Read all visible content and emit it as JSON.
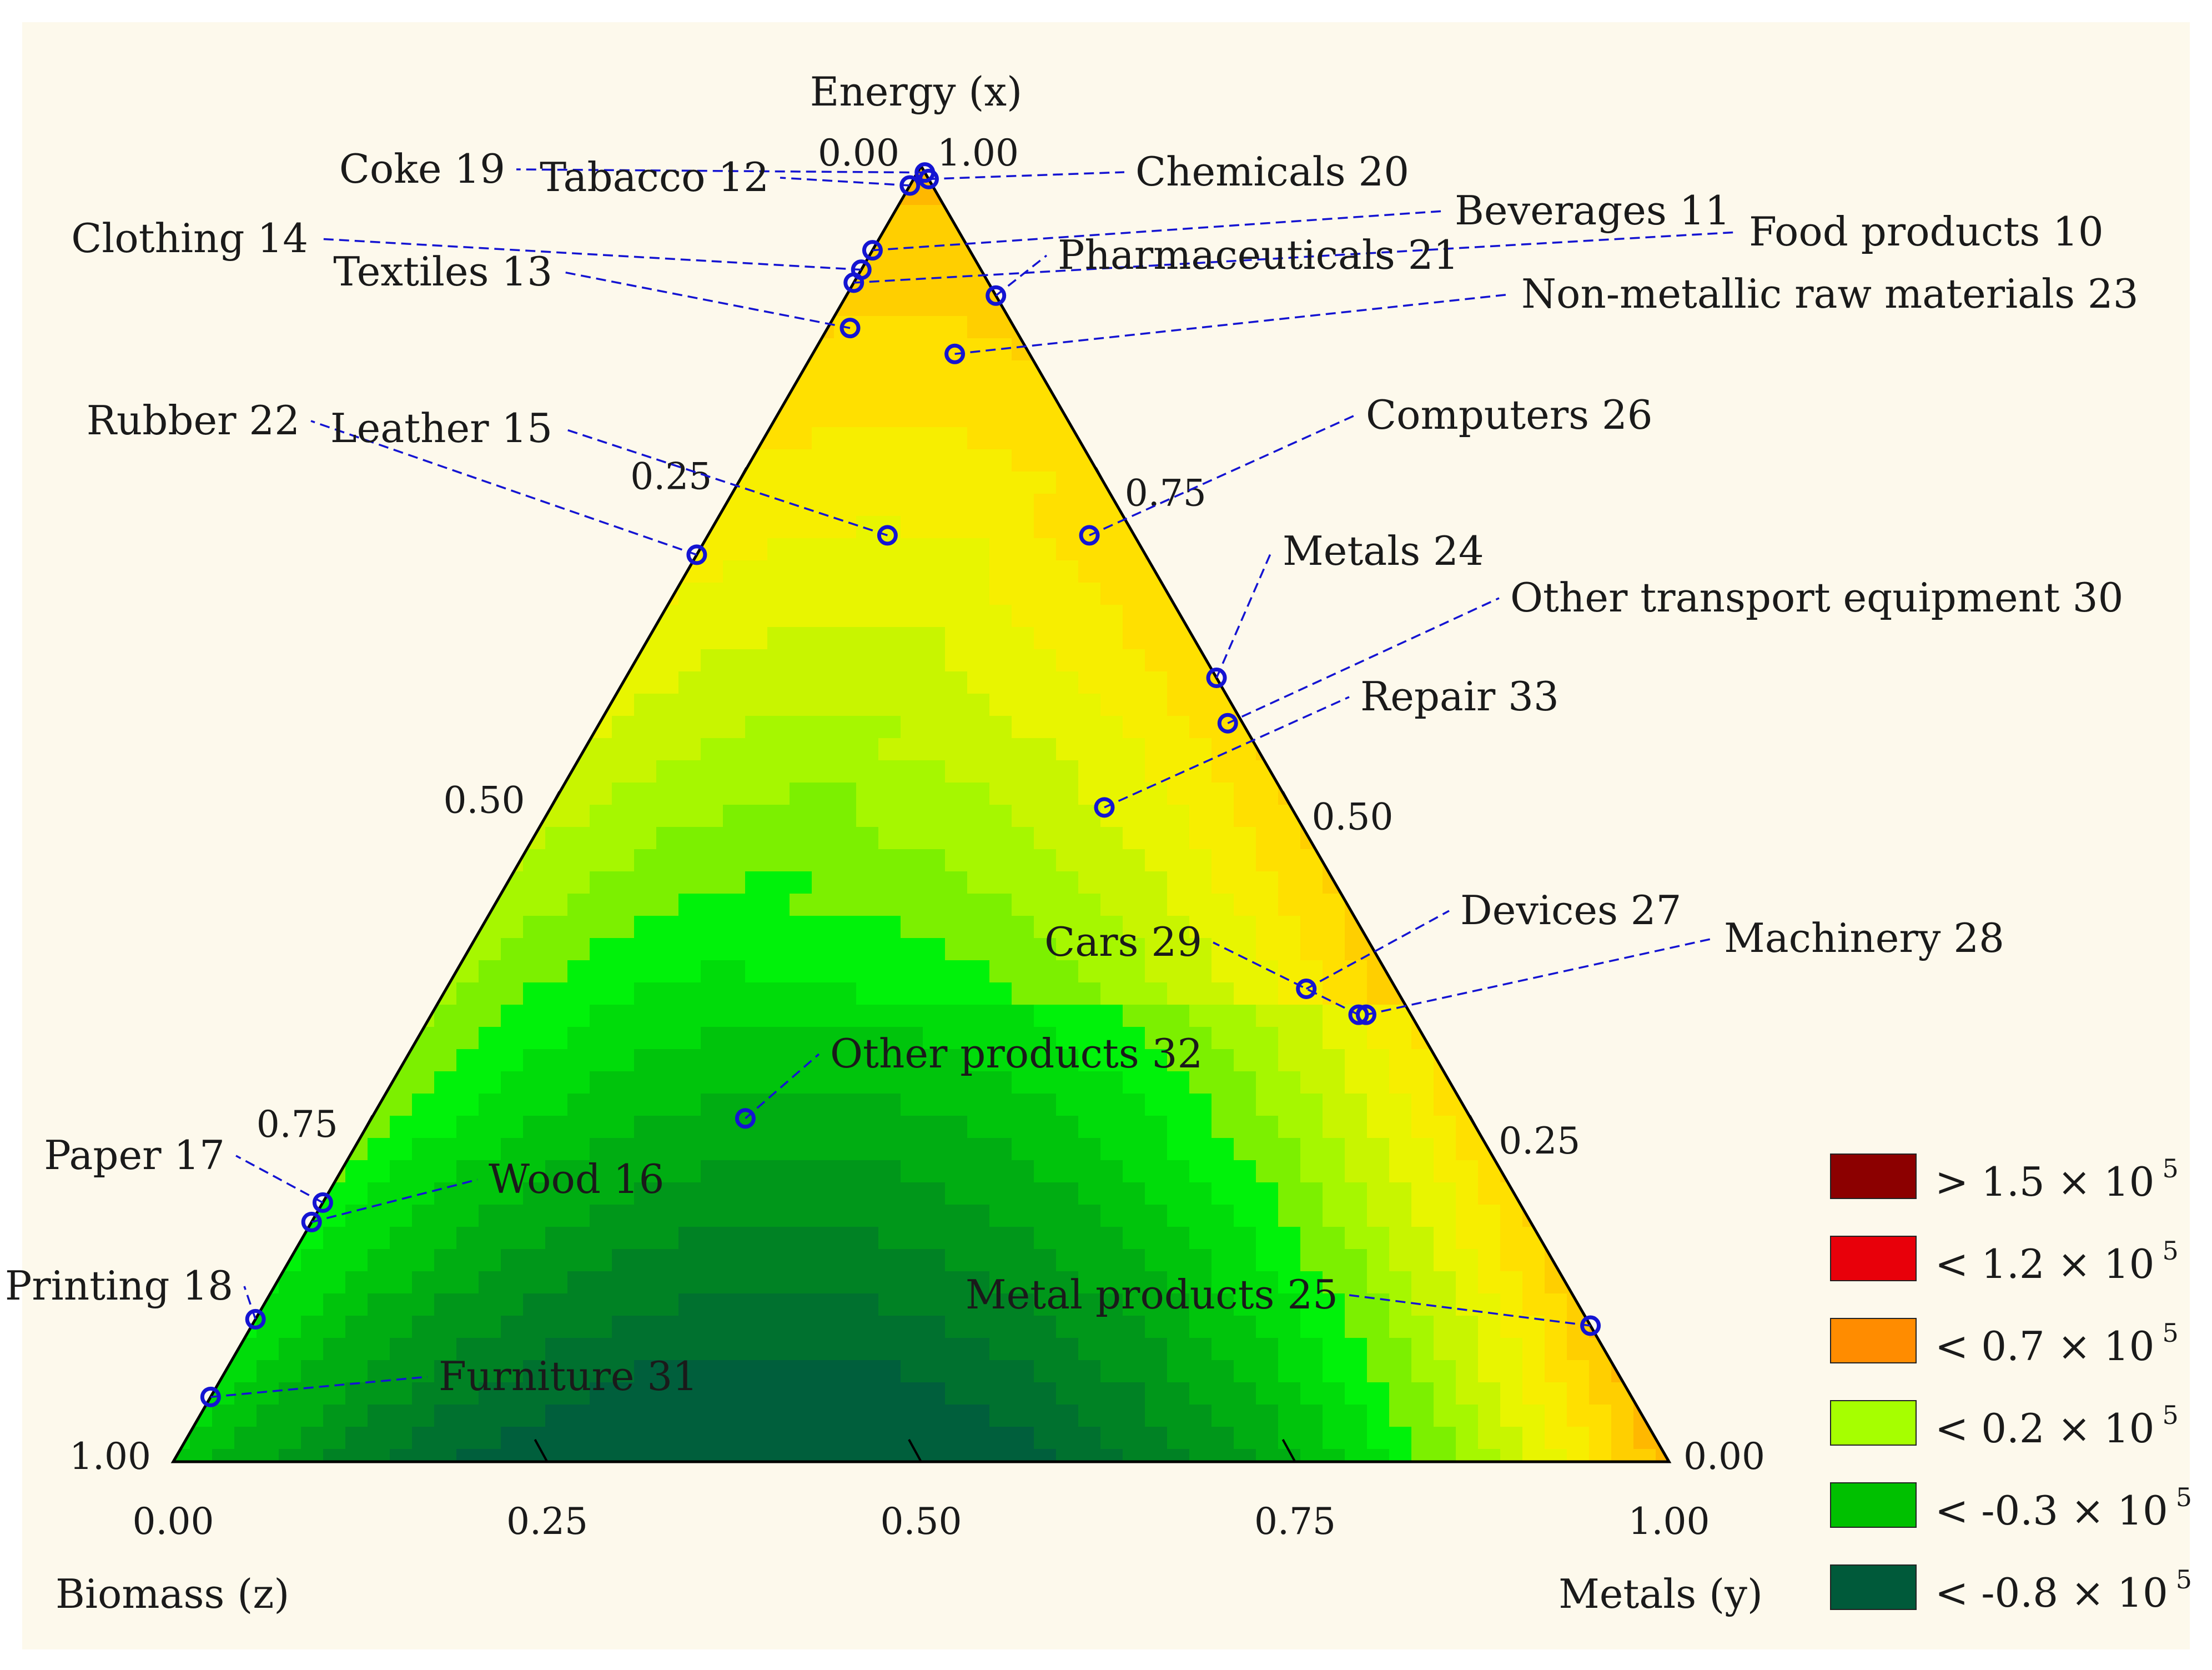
{
  "chart_data": {
    "type": "ternary-contour",
    "axes": {
      "top": {
        "label": "Energy (x)",
        "tick_start": "0.00",
        "tick_end": "1.00"
      },
      "right": {
        "label": "Metals (y)",
        "tick_end": "1.00"
      },
      "left": {
        "label": "Biomass (z)",
        "tick_start": "0.00",
        "tick_end": "1.00"
      },
      "left_edge_ticks": [
        "0.25",
        "0.50",
        "0.75"
      ],
      "right_edge_ticks": [
        "0.75",
        "0.50",
        "0.25"
      ],
      "corner_right": "0.00",
      "corner_left": "1.00",
      "bottom_ticks": [
        "0.00",
        "0.25",
        "0.50",
        "0.75",
        "1.00"
      ]
    },
    "legend": {
      "position": "bottom-right",
      "entries": [
        {
          "label": "> 1.5 × 10",
          "exp": "5",
          "color": "#8c0000"
        },
        {
          "label": "< 1.2 × 10",
          "exp": "5",
          "color": "#e8000a"
        },
        {
          "label": "< 0.7 × 10",
          "exp": "5",
          "color": "#ff8c00"
        },
        {
          "label": "< 0.2 × 10",
          "exp": "5",
          "color": "#a6ff00"
        },
        {
          "label": "< -0.3 × 10",
          "exp": "5",
          "color": "#00c000"
        },
        {
          "label": "< -0.8 × 10",
          "exp": "5",
          "color": "#005a3a"
        }
      ]
    },
    "colors": {
      "background": "#fdf9ec",
      "marker": "#1414d2",
      "contour_levels": [
        "#005f3c",
        "#00712f",
        "#008224",
        "#00971a",
        "#00ad12",
        "#00c40c",
        "#00dc0a",
        "#00f20a",
        "#7cf000",
        "#a6f700",
        "#c8f500",
        "#e8f500",
        "#f7ee00",
        "#ffe000",
        "#ffcf00",
        "#ffb800",
        "#ff9c00",
        "#ff7a00",
        "#f44b00",
        "#e8140a",
        "#c80a0a",
        "#9a0000"
      ]
    },
    "points": [
      {
        "label": "Coke 19",
        "x": 0.995,
        "y": 0.005,
        "z": 0.0
      },
      {
        "label": "Tabacco 12",
        "x": 0.985,
        "y": 0.0,
        "z": 0.015
      },
      {
        "label": "Chemicals 20",
        "x": 0.99,
        "y": 0.01,
        "z": 0.0
      },
      {
        "label": "Beverages  11",
        "x": 0.935,
        "y": 0.0,
        "z": 0.065
      },
      {
        "label": "Food products 10",
        "x": 0.91,
        "y": 0.0,
        "z": 0.09
      },
      {
        "label": "Clothing 14",
        "x": 0.92,
        "y": 0.0,
        "z": 0.08
      },
      {
        "label": "Pharmaceuticals 21",
        "x": 0.9,
        "y": 0.1,
        "z": 0.0
      },
      {
        "label": "Textiles 13",
        "x": 0.875,
        "y": 0.015,
        "z": 0.11
      },
      {
        "label": "Non-metallic raw materials 23",
        "x": 0.855,
        "y": 0.095,
        "z": 0.05
      },
      {
        "label": "Rubber 22",
        "x": 0.7,
        "y": 0.0,
        "z": 0.3
      },
      {
        "label": "Leather 15",
        "x": 0.715,
        "y": 0.12,
        "z": 0.165
      },
      {
        "label": "Computers 26",
        "x": 0.715,
        "y": 0.255,
        "z": 0.03
      },
      {
        "label": "Metals 24",
        "x": 0.605,
        "y": 0.395,
        "z": 0.0
      },
      {
        "label": "Other transport equipment 30",
        "x": 0.57,
        "y": 0.42,
        "z": 0.01
      },
      {
        "label": "Repair 33",
        "x": 0.505,
        "y": 0.37,
        "z": 0.125
      },
      {
        "label": "Devices 27",
        "x": 0.365,
        "y": 0.575,
        "z": 0.06
      },
      {
        "label": "Cars 29",
        "x": 0.345,
        "y": 0.62,
        "z": 0.035
      },
      {
        "label": "Machinery 28",
        "x": 0.345,
        "y": 0.625,
        "z": 0.03
      },
      {
        "label": "Other products 32",
        "x": 0.265,
        "y": 0.25,
        "z": 0.485
      },
      {
        "label": "Paper 17",
        "x": 0.2,
        "y": 0.0,
        "z": 0.8
      },
      {
        "label": "Wood 16",
        "x": 0.185,
        "y": 0.0,
        "z": 0.815
      },
      {
        "label": "Printing 18",
        "x": 0.11,
        "y": 0.0,
        "z": 0.89
      },
      {
        "label": "Metal products 25",
        "x": 0.105,
        "y": 0.895,
        "z": 0.0
      },
      {
        "label": "Furniture 31",
        "x": 0.05,
        "y": 0.0,
        "z": 0.95
      }
    ]
  }
}
